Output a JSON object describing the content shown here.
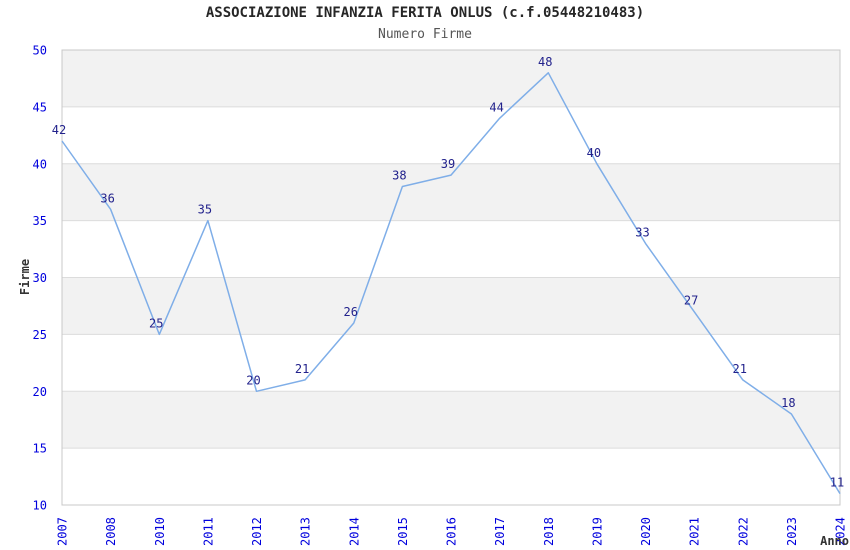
{
  "page": {
    "title": "ASSOCIAZIONE INFANZIA FERITA ONLUS (c.f.05448210483)",
    "subtitle": "Numero Firme"
  },
  "chart_data": {
    "type": "line",
    "title": "ASSOCIAZIONE INFANZIA FERITA ONLUS (c.f.05448210483)",
    "subtitle": "Numero Firme",
    "xlabel": "Anno",
    "ylabel": "Firme",
    "categories": [
      "2007",
      "2008",
      "2010",
      "2011",
      "2012",
      "2013",
      "2014",
      "2015",
      "2016",
      "2017",
      "2018",
      "2019",
      "2020",
      "2021",
      "2022",
      "2023",
      "2024"
    ],
    "values": [
      42,
      36,
      25,
      35,
      20,
      21,
      26,
      38,
      39,
      44,
      48,
      40,
      33,
      27,
      21,
      18,
      11
    ],
    "point_labels_shown": true,
    "ylim": [
      10,
      50
    ],
    "yticks": [
      10,
      15,
      20,
      25,
      30,
      35,
      40,
      45,
      50
    ],
    "grid": "horizontal-with-alternating-bands",
    "legend": "none",
    "x_tick_rotation_deg": -90,
    "colors": {
      "line": "#7FAEE8",
      "point_label": "#22228C",
      "tick_label": "#0000DD",
      "axis_title": "#333333",
      "band_fill": "#F2F2F2",
      "gridline": "#DCDCDC",
      "plot_border": "#C8C8C8",
      "plot_background": "#FFFFFF",
      "title": "#262626",
      "subtitle": "#555555"
    }
  }
}
